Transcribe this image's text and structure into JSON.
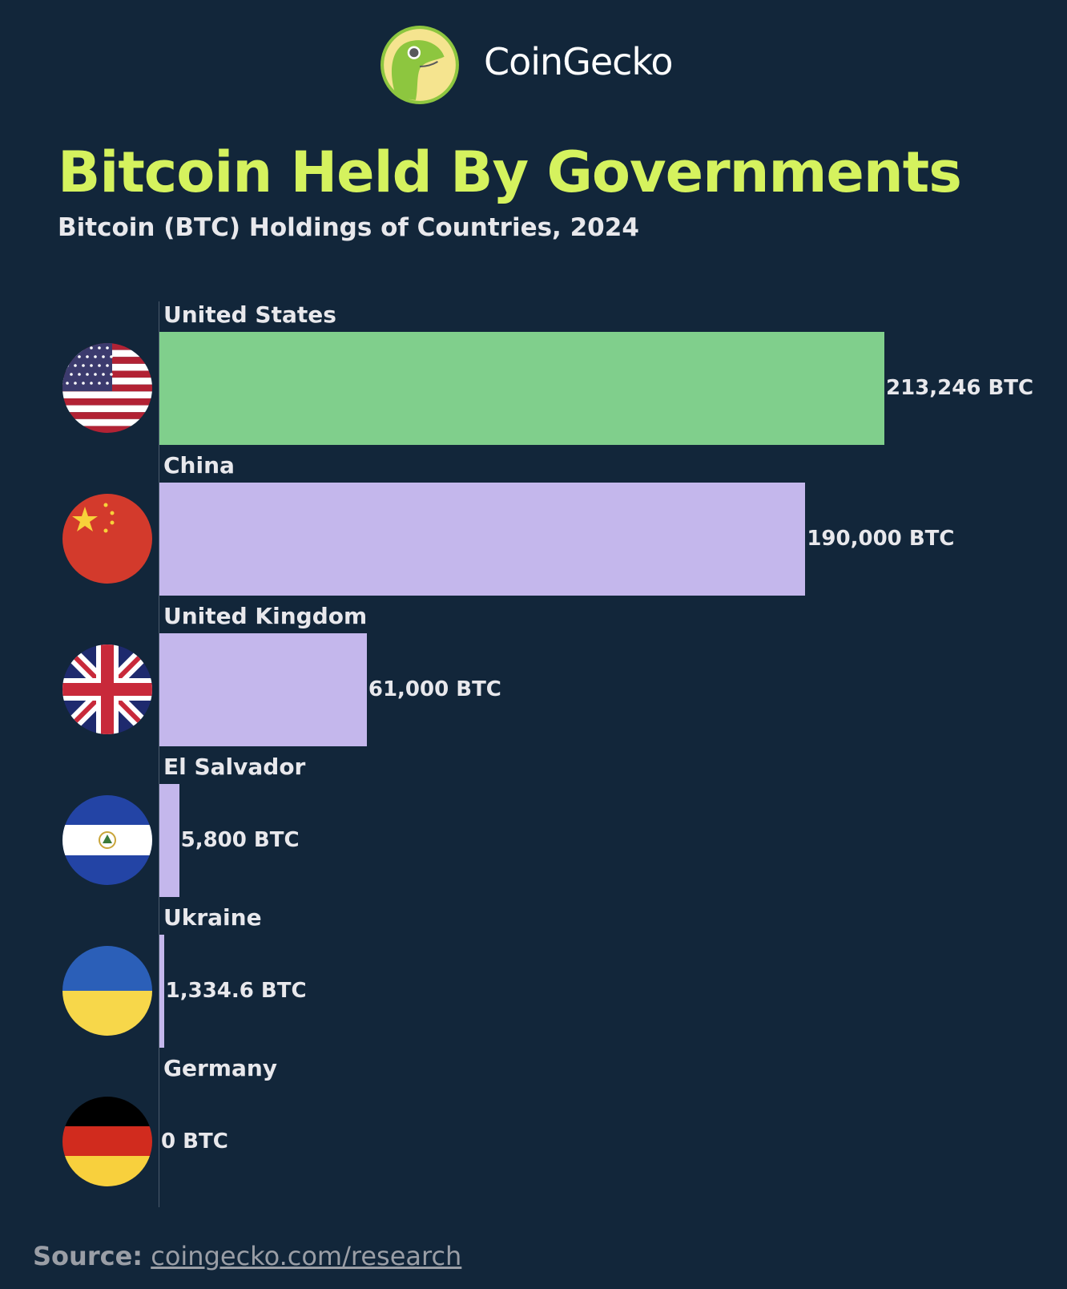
{
  "brand": {
    "name": "CoinGecko",
    "logo_icon": "gecko-logo"
  },
  "source": {
    "label": "Source:",
    "link": "coingecko.com/research"
  },
  "colors": {
    "background": "#12263a",
    "title": "#d5f25e",
    "highlight_bar": "#80cf8c",
    "bar": "#c4b7ec"
  },
  "chart_data": {
    "type": "bar",
    "orientation": "horizontal",
    "title": "Bitcoin Held By Governments",
    "subtitle": "Bitcoin (BTC) Holdings of Countries, 2024",
    "unit": "BTC",
    "categories": [
      "United States",
      "China",
      "United Kingdom",
      "El Salvador",
      "Ukraine",
      "Germany"
    ],
    "values": [
      213246,
      190000,
      61000,
      5800,
      1334.6,
      0
    ],
    "labels": [
      "213,246 BTC",
      "190,000 BTC",
      "61,000 BTC",
      "5,800 BTC",
      "1,334.6 BTC",
      "0 BTC"
    ],
    "flags": [
      "us-flag-icon",
      "china-flag-icon",
      "uk-flag-icon",
      "el-salvador-flag-icon",
      "ukraine-flag-icon",
      "germany-flag-icon"
    ],
    "highlight": "United States",
    "grid": false
  }
}
